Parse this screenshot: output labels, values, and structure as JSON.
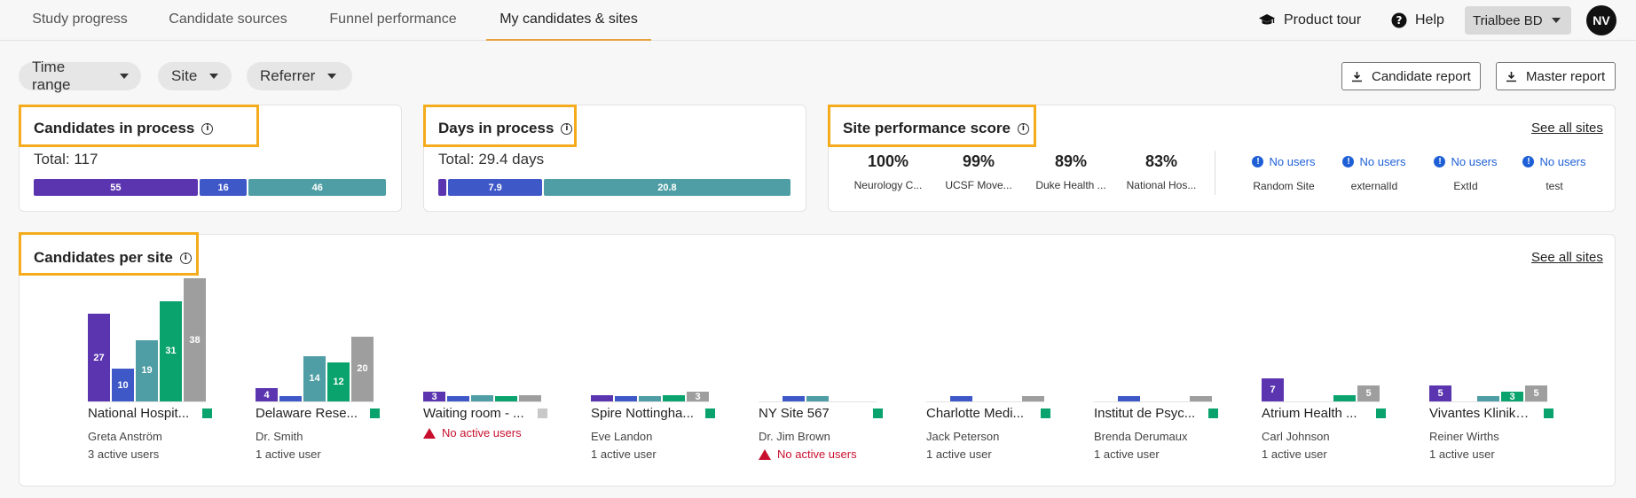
{
  "tabs": [
    {
      "label": "Study progress",
      "active": false
    },
    {
      "label": "Candidate sources",
      "active": false
    },
    {
      "label": "Funnel performance",
      "active": false
    },
    {
      "label": "My candidates & sites",
      "active": true
    }
  ],
  "topbar": {
    "product_tour": "Product tour",
    "help": "Help",
    "account": "Trialbee BD",
    "avatar_initials": "NV",
    "accent_color": "#e8a33d"
  },
  "filters": [
    "Time range",
    "Site",
    "Referrer"
  ],
  "reports": {
    "candidate": "Candidate report",
    "master": "Master report"
  },
  "highlight_color": "#f4ab1c",
  "candidates_in_process": {
    "title": "Candidates in process",
    "total": "Total: 117",
    "segments": [
      {
        "label": "55",
        "value": 55,
        "color": "#5b35b0"
      },
      {
        "label": "16",
        "value": 16,
        "color": "#3e58c8"
      },
      {
        "label": "46",
        "value": 46,
        "color": "#4f9ea5"
      }
    ]
  },
  "days_in_process": {
    "title": "Days in process",
    "total": "Total: 29.4 days",
    "segments": [
      {
        "label": "",
        "value": 0.7,
        "color": "#5b35b0"
      },
      {
        "label": "7.9",
        "value": 7.9,
        "color": "#3e58c8"
      },
      {
        "label": "20.8",
        "value": 20.8,
        "color": "#4f9ea5"
      }
    ]
  },
  "site_performance": {
    "title": "Site performance score",
    "see_all": "See all sites",
    "scores": [
      {
        "value": "100%",
        "name": "Neurology C..."
      },
      {
        "value": "99%",
        "name": "UCSF Move..."
      },
      {
        "value": "89%",
        "name": "Duke Health ..."
      },
      {
        "value": "83%",
        "name": "National Hos..."
      }
    ],
    "no_users": [
      {
        "label": "No users",
        "name": "Random Site"
      },
      {
        "label": "No users",
        "name": "externalId"
      },
      {
        "label": "No users",
        "name": "ExtId"
      },
      {
        "label": "No users",
        "name": "test"
      }
    ]
  },
  "candidates_per_site": {
    "title": "Candidates per site",
    "see_all": "See all sites",
    "status_colors": [
      "#5b35b0",
      "#3e58c8",
      "#4f9ea5",
      "#0aa36e",
      "#9e9e9e"
    ]
  },
  "chart_data": {
    "type": "bar",
    "series": [
      {
        "values": [
          27,
          4,
          3,
          2,
          0,
          0,
          0,
          7,
          5
        ],
        "labels": [
          "27",
          "4",
          "3",
          "",
          "",
          "",
          "",
          "7",
          "5"
        ]
      },
      {
        "values": [
          10,
          1,
          1,
          1,
          1,
          1,
          1,
          0,
          0
        ],
        "labels": [
          "10",
          "",
          "",
          "",
          "",
          "",
          "",
          "",
          ""
        ]
      },
      {
        "values": [
          19,
          14,
          2,
          1,
          1,
          0,
          0,
          0,
          1
        ],
        "labels": [
          "19",
          "14",
          "",
          "",
          "",
          "",
          "",
          "",
          ""
        ]
      },
      {
        "values": [
          31,
          12,
          1,
          2,
          0,
          0,
          0,
          2,
          3
        ],
        "labels": [
          "31",
          "12",
          "",
          "",
          "",
          "",
          "",
          "",
          "3"
        ]
      },
      {
        "values": [
          38,
          20,
          2,
          3,
          0,
          1,
          1,
          5,
          5
        ],
        "labels": [
          "38",
          "20",
          "",
          "3",
          "",
          "",
          "",
          "5",
          "5"
        ]
      }
    ],
    "categories": [
      "National Hospit...",
      "Delaware Rese...",
      "Waiting room - ...",
      "Spire Nottingha...",
      "NY Site 567",
      "Charlotte Medi...",
      "Institut de Psyc...",
      "Atrium Health ...",
      "Vivantes Kliniku..."
    ]
  },
  "sites": [
    {
      "name": "National Hospit...",
      "person": "Greta Anström",
      "users": "3 active users",
      "status": "#0aa36e",
      "warning": ""
    },
    {
      "name": "Delaware Rese...",
      "person": "Dr. Smith",
      "users": "1 active user",
      "status": "#0aa36e",
      "warning": ""
    },
    {
      "name": "Waiting room - ...",
      "person": "",
      "users": "",
      "status": "#c8c8c8",
      "warning": "No active users"
    },
    {
      "name": "Spire Nottingha...",
      "person": "Eve Landon",
      "users": "1 active user",
      "status": "#0aa36e",
      "warning": ""
    },
    {
      "name": "NY Site 567",
      "person": "Dr. Jim Brown",
      "users": "",
      "status": "#0aa36e",
      "warning": "No active users"
    },
    {
      "name": "Charlotte Medi...",
      "person": "Jack Peterson",
      "users": "1 active user",
      "status": "#0aa36e",
      "warning": ""
    },
    {
      "name": "Institut de Psyc...",
      "person": "Brenda Derumaux",
      "users": "1 active user",
      "status": "#0aa36e",
      "warning": ""
    },
    {
      "name": "Atrium Health ...",
      "person": "Carl Johnson",
      "users": "1 active user",
      "status": "#0aa36e",
      "warning": ""
    },
    {
      "name": "Vivantes Kliniku...",
      "person": "Reiner Wirths",
      "users": "1 active user",
      "status": "#0aa36e",
      "warning": ""
    }
  ]
}
